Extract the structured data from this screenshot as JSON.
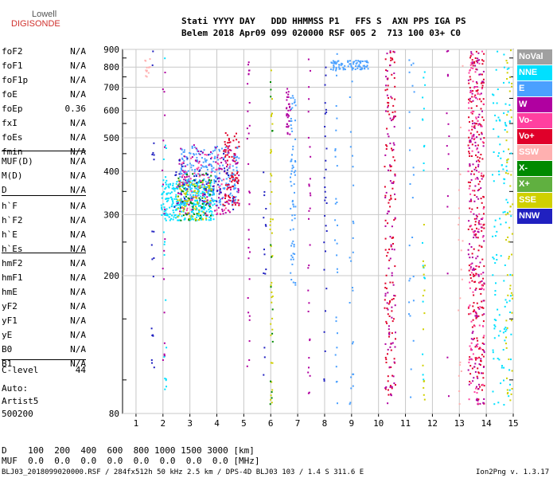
{
  "logo": {
    "line1": "Lowell",
    "line2": "DIGISONDE"
  },
  "header": {
    "labels": "Stati YYYY DAY   DDD HHMMSS P1   FFS S  AXN PPS IGA PS",
    "values": "Belem 2018 Apr09 099 020000 RSF 005 2  713 100 03+ C0"
  },
  "params": [
    {
      "name": "foF2",
      "value": "N/A"
    },
    {
      "name": "foF1",
      "value": "N/A"
    },
    {
      "name": "foF1p",
      "value": "N/A"
    },
    {
      "name": "foE",
      "value": "N/A"
    },
    {
      "name": "foEp",
      "value": "0.36"
    },
    {
      "name": "fxI",
      "value": "N/A"
    },
    {
      "name": "foEs",
      "value": "N/A"
    },
    {
      "name": "fmin",
      "value": "N/A"
    },
    {
      "name": "MUF(D)",
      "value": "N/A"
    },
    {
      "name": "M(D)",
      "value": "N/A"
    },
    {
      "name": "D",
      "value": "N/A"
    },
    {
      "name": "h`F",
      "value": "N/A"
    },
    {
      "name": "h`F2",
      "value": "N/A"
    },
    {
      "name": "h`E",
      "value": "N/A"
    },
    {
      "name": "h`Es",
      "value": "N/A"
    },
    {
      "name": "hmF2",
      "value": "N/A"
    },
    {
      "name": "hmF1",
      "value": "N/A"
    },
    {
      "name": "hmE",
      "value": "N/A"
    },
    {
      "name": "yF2",
      "value": "N/A"
    },
    {
      "name": "yF1",
      "value": "N/A"
    },
    {
      "name": "yE",
      "value": "N/A"
    },
    {
      "name": "B0",
      "value": "N/A"
    },
    {
      "name": "B1",
      "value": "N/A"
    },
    {
      "name": "C-level",
      "value": "44"
    }
  ],
  "auto": {
    "line1": "Auto:",
    "line2": "Artist5",
    "line3": "500200"
  },
  "bottom": {
    "d_row": "D    100  200  400  600  800 1000 1500 3000 [km]",
    "muf_row": "MUF  0.0  0.0  0.0  0.0  0.0  0.0  0.0  0.0 [MHz]",
    "footer_left": "BLJ03_2018099020000.RSF / 284fx512h 50 kHz 2.5 km / DPS-4D BLJ03 103 / 1.4 S 311.6 E",
    "footer_right": "Ion2Png v. 1.3.17"
  },
  "legend": [
    {
      "label": "NoVal",
      "color": "#a0a0a0"
    },
    {
      "label": "NNE",
      "color": "#00e0ff"
    },
    {
      "label": "E",
      "color": "#4aa0ff"
    },
    {
      "label": "W",
      "color": "#b000a0"
    },
    {
      "label": "Vo-",
      "color": "#ff40a0"
    },
    {
      "label": "Vo+",
      "color": "#e0002a"
    },
    {
      "label": "SSW",
      "color": "#ffb0b0"
    },
    {
      "label": "X-",
      "color": "#008a00"
    },
    {
      "label": "X+",
      "color": "#60b040"
    },
    {
      "label": "SSE",
      "color": "#d0d000"
    },
    {
      "label": "NNW",
      "color": "#2020c0"
    }
  ],
  "chart_data": {
    "type": "scatter",
    "xlabel": "",
    "ylabel": "",
    "xlim": [
      0.5,
      15
    ],
    "ylim": [
      80,
      900
    ],
    "y_scale": "log",
    "grid": true,
    "legend_placement": "right",
    "x_ticks": [
      1,
      2,
      3,
      4,
      5,
      6,
      7,
      8,
      9,
      10,
      11,
      12,
      13,
      14,
      15
    ],
    "y_ticks": [
      80,
      200,
      300,
      400,
      500,
      600,
      700,
      800,
      900
    ],
    "clusters": [
      {
        "series": "NNE",
        "x": [
          1.9,
          3.9
        ],
        "y": [
          290,
          380
        ],
        "n": 350
      },
      {
        "series": "E",
        "x": [
          2.6,
          4.8
        ],
        "y": [
          320,
          480
        ],
        "n": 250
      },
      {
        "series": "W",
        "x": [
          2.5,
          4.8
        ],
        "y": [
          300,
          480
        ],
        "n": 120
      },
      {
        "series": "Vo+",
        "x": [
          4.2,
          4.8
        ],
        "y": [
          320,
          520
        ],
        "n": 80
      },
      {
        "series": "X-",
        "x": [
          2.5,
          3.8
        ],
        "y": [
          290,
          400
        ],
        "n": 60
      },
      {
        "series": "SSE",
        "x": [
          2.5,
          3.8
        ],
        "y": [
          290,
          380
        ],
        "n": 80
      },
      {
        "series": "NNW",
        "x": [
          2.4,
          4.6
        ],
        "y": [
          300,
          460
        ],
        "n": 60
      },
      {
        "series": "Vo-",
        "x": [
          2.5,
          4.5
        ],
        "y": [
          300,
          450
        ],
        "n": 60
      },
      {
        "series": "E",
        "x": [
          8.2,
          9.6
        ],
        "y": [
          790,
          840
        ],
        "n": 80
      },
      {
        "series": "Vo+",
        "x": [
          13.3,
          13.9
        ],
        "y": [
          85,
          900
        ],
        "n": 220
      },
      {
        "series": "W",
        "x": [
          13.3,
          13.9
        ],
        "y": [
          85,
          900
        ],
        "n": 150
      },
      {
        "series": "Vo-",
        "x": [
          13.3,
          13.9
        ],
        "y": [
          85,
          900
        ],
        "n": 100
      },
      {
        "series": "Vo+",
        "x": [
          10.2,
          10.6
        ],
        "y": [
          85,
          900
        ],
        "n": 120
      },
      {
        "series": "W",
        "x": [
          10.2,
          10.6
        ],
        "y": [
          85,
          900
        ],
        "n": 80
      },
      {
        "series": "E",
        "x": [
          6.7,
          6.9
        ],
        "y": [
          180,
          680
        ],
        "n": 70
      },
      {
        "series": "NNE",
        "x": [
          14.2,
          14.9
        ],
        "y": [
          85,
          900
        ],
        "n": 120
      },
      {
        "series": "SSE",
        "x": [
          14.7,
          14.95
        ],
        "y": [
          85,
          900
        ],
        "n": 60
      }
    ],
    "columns": [
      {
        "series": "NNW",
        "x": [
          1.55,
          1.65
        ],
        "y": [
          85,
          900
        ],
        "n": 20
      },
      {
        "series": "W",
        "x": [
          1.95,
          2.05
        ],
        "y": [
          85,
          900
        ],
        "n": 20
      },
      {
        "series": "NNE",
        "x": [
          2.0,
          2.1
        ],
        "y": [
          85,
          900
        ],
        "n": 20
      },
      {
        "series": "SSW",
        "x": [
          1.3,
          1.5
        ],
        "y": [
          750,
          850
        ],
        "n": 12
      },
      {
        "series": "SSE",
        "x": [
          5.95,
          6.05
        ],
        "y": [
          85,
          900
        ],
        "n": 40
      },
      {
        "series": "X-",
        "x": [
          5.95,
          6.05
        ],
        "y": [
          85,
          900
        ],
        "n": 15
      },
      {
        "series": "W",
        "x": [
          6.55,
          6.7
        ],
        "y": [
          500,
          700
        ],
        "n": 30
      },
      {
        "series": "W",
        "x": [
          7.35,
          7.45
        ],
        "y": [
          85,
          900
        ],
        "n": 30
      },
      {
        "series": "NNW",
        "x": [
          7.95,
          8.05
        ],
        "y": [
          85,
          900
        ],
        "n": 30
      },
      {
        "series": "E",
        "x": [
          8.35,
          8.45
        ],
        "y": [
          85,
          900
        ],
        "n": 30
      },
      {
        "series": "E",
        "x": [
          8.9,
          9.05
        ],
        "y": [
          85,
          900
        ],
        "n": 25
      },
      {
        "series": "NNE",
        "x": [
          11.6,
          11.7
        ],
        "y": [
          85,
          900
        ],
        "n": 20
      },
      {
        "series": "W",
        "x": [
          12.5,
          12.6
        ],
        "y": [
          85,
          900
        ],
        "n": 15
      },
      {
        "series": "E",
        "x": [
          11.1,
          11.3
        ],
        "y": [
          85,
          900
        ],
        "n": 25
      },
      {
        "series": "SSW",
        "x": [
          12.9,
          13.1
        ],
        "y": [
          85,
          900
        ],
        "n": 20
      },
      {
        "series": "W",
        "x": [
          5.1,
          5.2
        ],
        "y": [
          100,
          900
        ],
        "n": 30
      },
      {
        "series": "NNW",
        "x": [
          5.7,
          5.8
        ],
        "y": [
          100,
          400
        ],
        "n": 15
      },
      {
        "series": "SSE",
        "x": [
          11.6,
          11.7
        ],
        "y": [
          85,
          300
        ],
        "n": 15
      }
    ]
  }
}
